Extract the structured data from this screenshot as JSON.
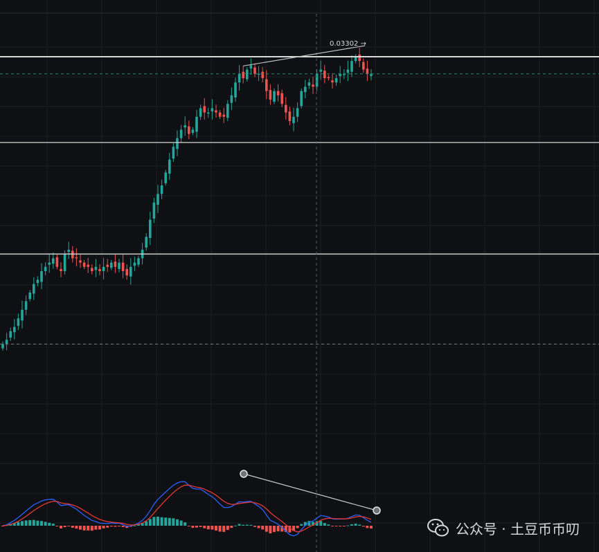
{
  "chart_data": {
    "type": "candlestick",
    "price_label": "0.03302 →",
    "colors": {
      "background": "#0f1013",
      "grid": "#1c1e23",
      "up": "#26a69a",
      "down": "#ef5350",
      "level_line": "#d9d9d9",
      "macd_line": "#2962ff",
      "signal_line": "#e53935",
      "trendline": "#bfbfbf",
      "dashed_current": "#2a8a7a",
      "crosshair": "#555a63"
    },
    "price_range": [
      0,
      100
    ],
    "horizontal_levels": [
      {
        "name": "upper-resistance",
        "value": 90
      },
      {
        "name": "middle-level",
        "value": 70
      },
      {
        "name": "lower-level",
        "value": 44
      }
    ],
    "dashed_levels": [
      {
        "name": "current-price-dashed",
        "value": 86
      },
      {
        "name": "lower-dashed",
        "value": 23
      }
    ],
    "closes": [
      23,
      24,
      26,
      27,
      29,
      31,
      33,
      35,
      37,
      38,
      40,
      41,
      42,
      43,
      41,
      40,
      44,
      45,
      43,
      43,
      42,
      41,
      41,
      40,
      41,
      40,
      41,
      41,
      42,
      41,
      42,
      40,
      39,
      41,
      42,
      43,
      45,
      48,
      52,
      56,
      58,
      60,
      63,
      66,
      69,
      71,
      73,
      74,
      72,
      73,
      76,
      78,
      77,
      77,
      78,
      77,
      76,
      76,
      79,
      81,
      84,
      86,
      85,
      87,
      88,
      86,
      86,
      85,
      82,
      80,
      82,
      81,
      79,
      77,
      75,
      76,
      78,
      82,
      83,
      84,
      83,
      86,
      87,
      85,
      85,
      84,
      85,
      86,
      86,
      87,
      89,
      90,
      89,
      87,
      86,
      86
    ]
  },
  "watermark": {
    "text": "公众号 · 土豆币币叨",
    "icon": "wechat-icon"
  }
}
